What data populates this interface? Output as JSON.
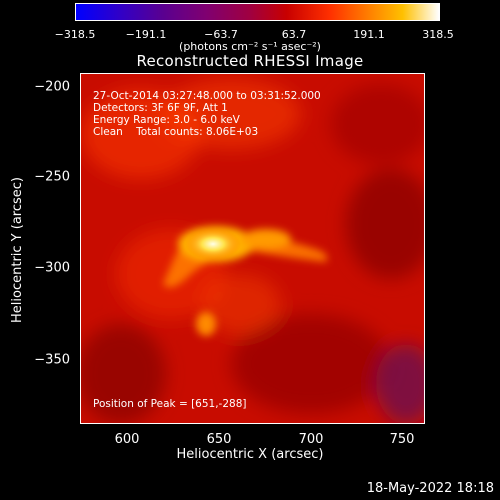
{
  "colorbar": {
    "ticks": [
      "−318.5",
      "−191.1",
      "−63.7",
      "63.7",
      "191.1",
      "318.5"
    ],
    "units": "(photons cm⁻² s⁻¹ asec⁻²)"
  },
  "title": "Reconstructed RHESSI Image",
  "info": {
    "time": "27-Oct-2014 03:27:48.000 to 03:31:52.000",
    "detectors": "Detectors: 3F 6F 9F, Att 1",
    "energy": "Energy Range: 3.0 - 6.0 keV",
    "clean": "Clean    Total counts: 8.06E+03",
    "peak": "Position of Peak = [651,-288]"
  },
  "axes": {
    "xlabel": "Heliocentric X (arcsec)",
    "ylabel": "Heliocentric Y (arcsec)",
    "xticks": [
      "600",
      "650",
      "700",
      "750"
    ],
    "yticks": [
      "−200",
      "−250",
      "−300",
      "−350"
    ]
  },
  "footer": "18-May-2022 18:18",
  "colors": {
    "background": "#000000",
    "text": "#ffffff"
  },
  "image": {
    "source_shape": "bright flare loop arc with hot kernel near [651,-288]"
  }
}
